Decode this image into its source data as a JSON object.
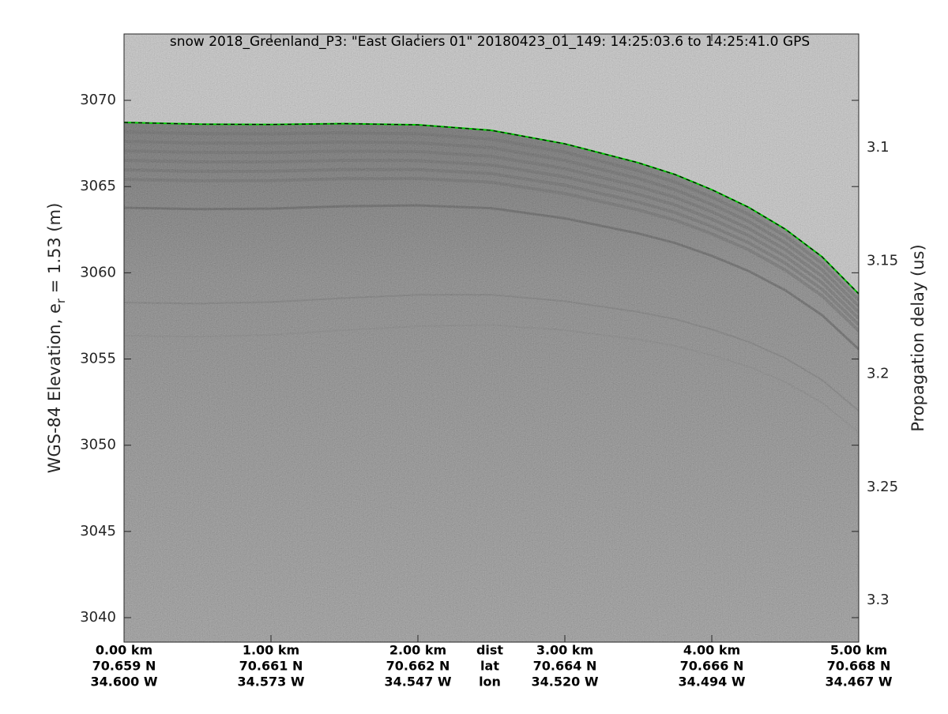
{
  "chart_data": {
    "type": "echogram",
    "title": "snow 2018_Greenland_P3: \"East Glaciers 01\"  20180423_01_149: 14:25:03.6 to 14:25:41.0 GPS",
    "ylabel": {
      "before": "WGS-84 Elevation, e",
      "sub": "r",
      "after": " = 1.53 (m)"
    },
    "y2label": "Propagation delay (us)",
    "xlim": [
      0,
      5
    ],
    "xticks": [
      {
        "value": 0,
        "label": "0.00 km"
      },
      {
        "value": 1,
        "label": "1.00 km"
      },
      {
        "value": 2,
        "label": "2.00 km"
      },
      {
        "value": 3,
        "label": "3.00 km"
      },
      {
        "value": 4,
        "label": "4.00 km"
      },
      {
        "value": 5,
        "label": "5.00 km"
      }
    ],
    "lat_labels": [
      "70.659 N",
      "70.661 N",
      "70.662 N",
      "70.664 N",
      "70.666 N",
      "70.668 N"
    ],
    "lon_labels": [
      "34.600 W",
      "34.573 W",
      "34.547 W",
      "34.520 W",
      "34.494 W",
      "34.467 W"
    ],
    "row_labels": [
      "dist",
      "lat",
      "lon"
    ],
    "ylim": [
      3038.58,
      3073.85
    ],
    "yticks": [
      3040,
      3045,
      3050,
      3055,
      3060,
      3065,
      3070
    ],
    "y2lim": [
      3.0497,
      3.3185
    ],
    "y2ticks": [
      3.1,
      3.15,
      3.2,
      3.25,
      3.3
    ],
    "series": [
      {
        "name": "surface",
        "color": "#00cc00",
        "x": [
          0,
          0.5,
          1,
          1.5,
          2,
          2.5,
          3,
          3.5,
          3.75,
          4,
          4.25,
          4.5,
          4.75,
          5
        ],
        "values": [
          3068.72,
          3068.62,
          3068.6,
          3068.65,
          3068.58,
          3068.26,
          3067.48,
          3066.38,
          3065.7,
          3064.82,
          3063.8,
          3062.53,
          3060.93,
          3058.78
        ]
      }
    ]
  }
}
